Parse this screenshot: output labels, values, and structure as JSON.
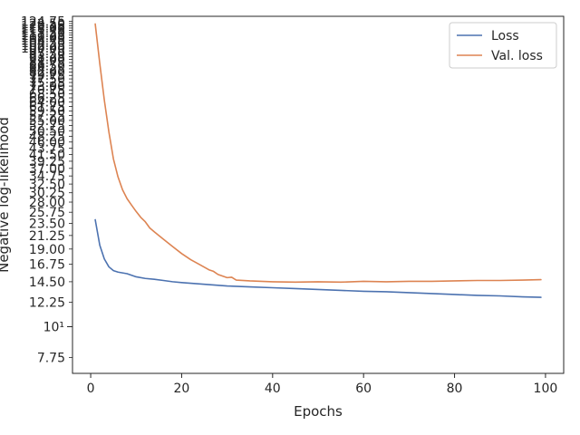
{
  "chart_data": {
    "type": "line",
    "title": "",
    "xlabel": "Epochs",
    "ylabel": "Negative log-likelihood",
    "yscale": "log",
    "xlim": [
      -4,
      104
    ],
    "ylim": [
      6.8,
      130
    ],
    "x_ticks": [
      0,
      20,
      40,
      60,
      80,
      100
    ],
    "y_major_tick": {
      "value": 10,
      "label": "10¹"
    },
    "y_ticks": [
      7.75,
      12.25,
      14.5,
      16.75,
      19.0,
      21.25,
      23.5,
      25.75,
      28.0,
      30.25,
      32.5,
      34.75,
      37.0,
      39.25,
      41.5,
      43.75,
      46.0,
      48.25,
      50.5,
      52.75,
      55.0,
      57.25,
      59.5,
      61.75,
      64.0,
      66.25,
      68.5,
      70.75,
      73.0,
      75.25,
      77.5,
      79.75,
      82.0,
      84.25,
      86.5,
      88.75,
      91.0,
      93.25,
      95.5,
      97.75,
      100.0,
      102.25,
      104.5,
      106.75,
      109.0,
      111.25,
      113.5,
      115.75,
      118.0,
      120.25,
      122.5,
      124.75
    ],
    "y_tick_labels": [
      "7.75",
      "12.25",
      "14.50",
      "16.75",
      "19.00",
      "21.25",
      "23.50",
      "25.75",
      "28.00",
      "30.25",
      "32.50",
      "34.75",
      "37.00",
      "39.25",
      "41.50",
      "43.75",
      "46.00",
      "48.25",
      "50.50",
      "52.75",
      "55.00",
      "57.25",
      "59.50",
      "61.75",
      "64.00",
      "66.25",
      "68.50",
      "70.75",
      "73.00",
      "75.25",
      "77.50",
      "79.75",
      "82.00",
      "84.25",
      "86.50",
      "88.75",
      "91.00",
      "93.25",
      "95.50",
      "97.75",
      "100.00",
      "102.25",
      "104.50",
      "106.75",
      "109.00",
      "111.25",
      "113.50",
      "115.75",
      "118.00",
      "120.25",
      "122.50",
      "124.75"
    ],
    "grid": false,
    "legend_position": "top-right",
    "series": [
      {
        "name": "Loss",
        "color": "#4c72b0",
        "x": [
          1,
          2,
          3,
          4,
          5,
          6,
          7,
          8,
          10,
          12,
          14,
          16,
          18,
          20,
          25,
          30,
          35,
          40,
          45,
          50,
          55,
          60,
          65,
          70,
          75,
          80,
          85,
          90,
          95,
          99
        ],
        "y": [
          24.2,
          19.6,
          17.5,
          16.4,
          15.9,
          15.7,
          15.6,
          15.5,
          15.1,
          14.9,
          14.8,
          14.65,
          14.5,
          14.4,
          14.2,
          14.0,
          13.9,
          13.8,
          13.7,
          13.6,
          13.5,
          13.4,
          13.35,
          13.25,
          13.15,
          13.05,
          12.95,
          12.9,
          12.8,
          12.75
        ]
      },
      {
        "name": "Val. loss",
        "color": "#dd8452",
        "x": [
          1,
          2,
          3,
          4,
          5,
          6,
          7,
          8,
          9,
          10,
          11,
          12,
          13,
          14,
          16,
          18,
          20,
          22,
          24,
          26,
          27,
          28,
          30,
          31,
          32,
          35,
          40,
          45,
          50,
          55,
          60,
          65,
          70,
          75,
          80,
          85,
          90,
          95,
          99
        ],
        "y": [
          122,
          88,
          65,
          50,
          40,
          34.5,
          31,
          28.8,
          27.3,
          25.9,
          24.7,
          23.8,
          22.6,
          21.9,
          20.6,
          19.4,
          18.3,
          17.4,
          16.7,
          16.0,
          15.8,
          15.4,
          15.0,
          15.05,
          14.7,
          14.6,
          14.5,
          14.45,
          14.5,
          14.45,
          14.55,
          14.5,
          14.55,
          14.55,
          14.6,
          14.65,
          14.65,
          14.7,
          14.75
        ]
      }
    ]
  }
}
